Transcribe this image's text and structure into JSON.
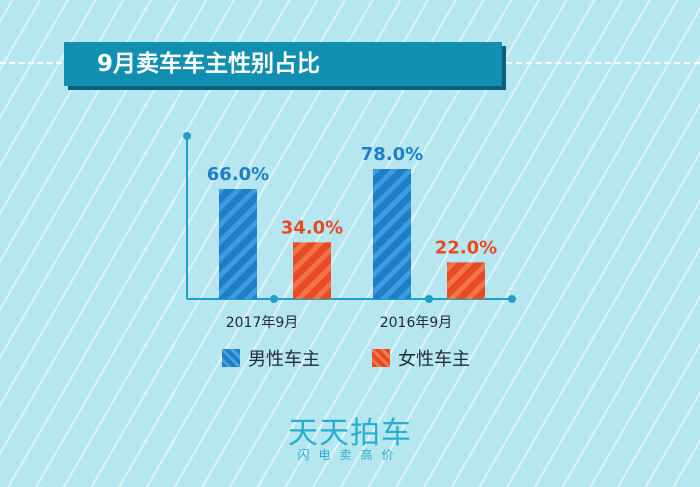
{
  "header": {
    "title": "9月卖车车主性别占比"
  },
  "legend": {
    "male": "男性车主",
    "female": "女性车主"
  },
  "brand": {
    "name": "天天拍车",
    "slogan": "闪电卖高价"
  },
  "colors": {
    "male": "#1e7fc8",
    "female": "#e84a22",
    "axis": "#1aa3c4",
    "title_bg": "#118fb0",
    "background": "#b6e7f0"
  },
  "chart_data": {
    "type": "bar",
    "categories": [
      "2017年9月",
      "2016年9月"
    ],
    "series": [
      {
        "name": "男性车主",
        "values": [
          66.0,
          78.0
        ],
        "labels": [
          "66.0%",
          "78.0%"
        ]
      },
      {
        "name": "女性车主",
        "values": [
          34.0,
          22.0
        ],
        "labels": [
          "34.0%",
          "22.0%"
        ]
      }
    ],
    "ylim": [
      0,
      100
    ],
    "grid": false,
    "legend_position": "bottom"
  }
}
